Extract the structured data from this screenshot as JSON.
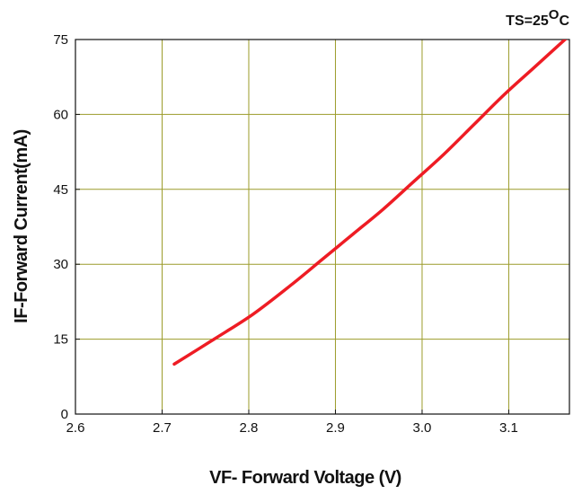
{
  "chart_data": {
    "type": "line",
    "title": "",
    "condition_label": "TS=25",
    "condition_superscript": "O",
    "condition_unit": "C",
    "xlabel": "VF- Forward Voltage (V)",
    "ylabel": "IF-Forward Current(mA)",
    "xlim": [
      2.6,
      3.17
    ],
    "ylim": [
      0,
      75
    ],
    "x_ticks": [
      2.6,
      2.7,
      2.8,
      2.9,
      3.0,
      3.1
    ],
    "x_tick_labels": [
      "2.6",
      "2.7",
      "2.8",
      "2.9",
      "3.0",
      "3.1"
    ],
    "y_ticks": [
      0,
      15,
      30,
      45,
      60,
      75
    ],
    "y_tick_labels": [
      "0",
      "15",
      "30",
      "45",
      "60",
      "75"
    ],
    "grid": true,
    "colors": {
      "series": "#ee1c24",
      "grid": "#9c9c2a",
      "axis": "#111111"
    },
    "series": [
      {
        "x": [
          2.714,
          2.76,
          2.805,
          2.85,
          2.885,
          2.92,
          2.955,
          2.99,
          3.025,
          3.06,
          3.095,
          3.13,
          3.168
        ],
        "y": [
          10.0,
          15.0,
          20.0,
          26.0,
          31.0,
          36.0,
          41.0,
          46.5,
          52.0,
          58.0,
          64.0,
          69.5,
          75.5
        ]
      }
    ]
  }
}
